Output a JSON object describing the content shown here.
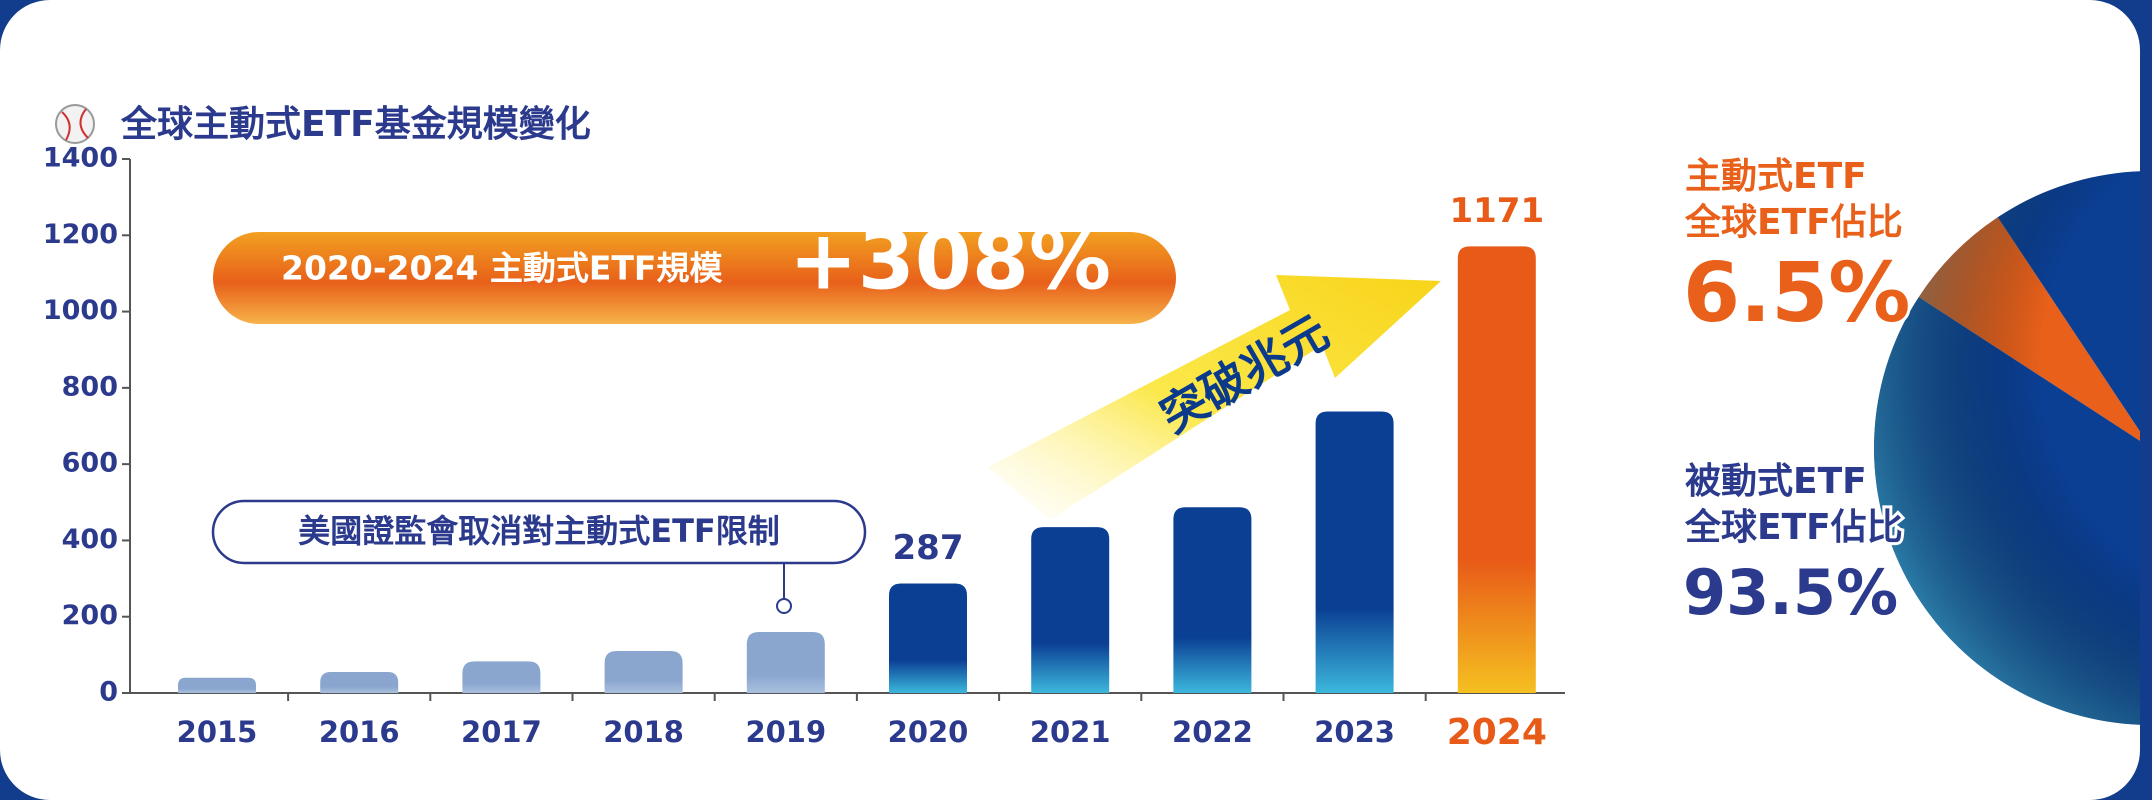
{
  "chart_data": [
    {
      "type": "bar",
      "title": "全球主動式ETF基金規模變化",
      "categories": [
        "2015",
        "2016",
        "2017",
        "2018",
        "2019",
        "2020",
        "2021",
        "2022",
        "2023",
        "2024"
      ],
      "values": [
        40,
        55,
        83,
        110,
        160,
        287,
        435,
        487,
        738,
        1171
      ],
      "value_labels": [
        null,
        null,
        null,
        null,
        null,
        "287",
        null,
        null,
        null,
        "1171"
      ],
      "colors": [
        "#8aa6cf",
        "#8aa6cf",
        "#8aa6cf",
        "#8aa6cf",
        "#8aa6cf",
        "#0b3f94",
        "#0b3f94",
        "#0b3f94",
        "#0b3f94",
        "#e85a18"
      ],
      "fade_colors": [
        "#a9c0de",
        "#a9c0de",
        "#a9c0de",
        "#a9c0de",
        "#a9c0de",
        "#3cb8dc",
        "#3cb8dc",
        "#3cb8dc",
        "#3cb8dc",
        "#f5c020"
      ],
      "ylim": [
        0,
        1400
      ],
      "yticks": [
        0,
        200,
        400,
        600,
        800,
        1000,
        1200,
        1400
      ],
      "annotations": {
        "banner": "2020-2024 主動式ETF規模",
        "growth": "+308%",
        "arrow": "突破兆元",
        "callout": "美國證監會取消對主動式ETF限制"
      }
    },
    {
      "type": "pie",
      "categories": [
        [
          "主動式ETF",
          "全球ETF佔比"
        ],
        [
          "被動式ETF",
          "全球ETF佔比"
        ]
      ],
      "values": [
        6.5,
        93.5
      ],
      "value_labels": [
        "6.5%",
        "93.5%"
      ],
      "colors": [
        "#e8601a",
        "#0b3f94"
      ]
    }
  ]
}
